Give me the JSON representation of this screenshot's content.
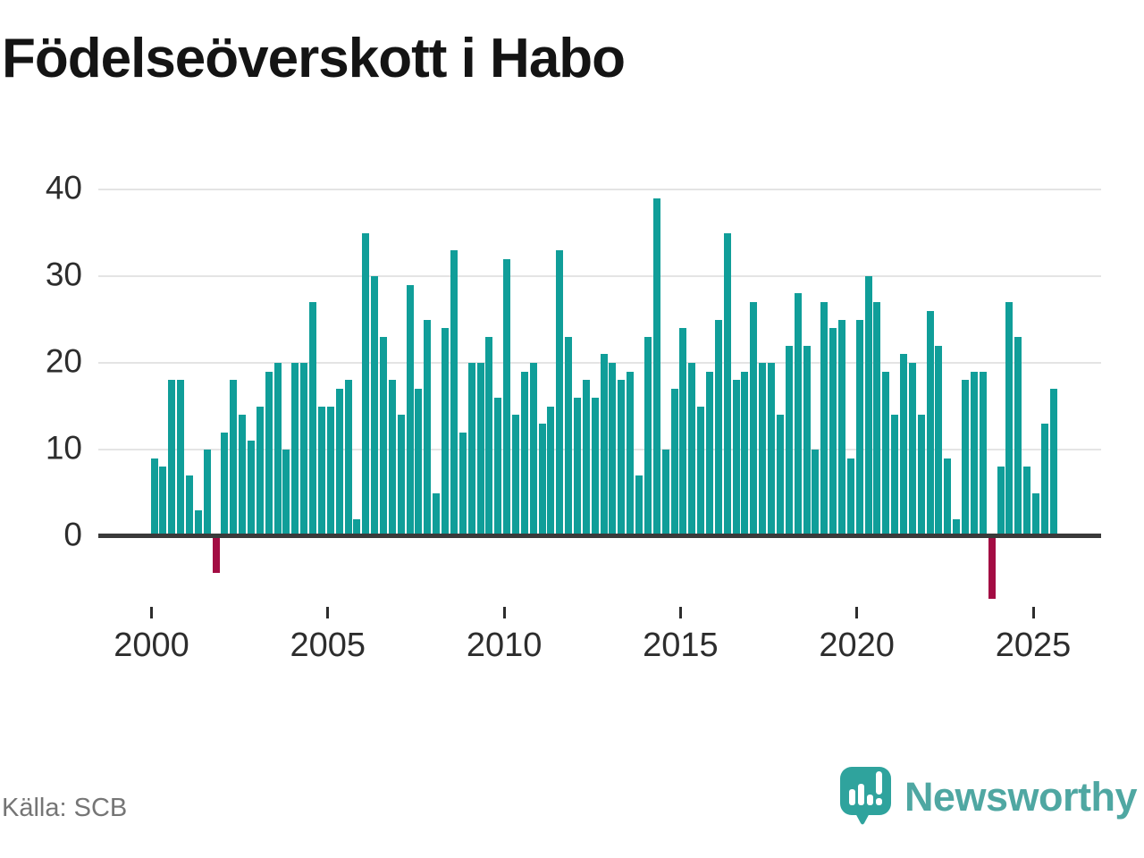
{
  "title": "Födelseöverskott i Habo",
  "source": "Källa: SCB",
  "branding": {
    "name": "Newsworthy",
    "icon": "speech-bubble-bar-chart-exclamation-icon",
    "text_color": "#4fa7a2",
    "icon_color": "#2fa39d"
  },
  "colors": {
    "bar_positive": "#109e99",
    "bar_negative": "#a30c43",
    "axis": "#3a3a3a",
    "gridline": "#e4e4e4",
    "labels": "#2d2d2d",
    "title": "#141414",
    "source_text": "#757575"
  },
  "chart_data": {
    "type": "bar",
    "title": "Födelseöverskott i Habo",
    "x_unit": "quarter",
    "start_year": 2000,
    "start_quarter": 1,
    "end_label": "2025 Q3",
    "grid": "horizontal",
    "legend": "none",
    "y_ticks": [
      0,
      10,
      20,
      30,
      40
    ],
    "ylim": [
      -8,
      42
    ],
    "x_tick_labels": [
      "2000",
      "2005",
      "2010",
      "2015",
      "2020",
      "2025"
    ],
    "series": [
      {
        "name": "Födelseöverskott",
        "values": [
          9,
          8,
          18,
          18,
          7,
          3,
          10,
          -4,
          12,
          18,
          14,
          11,
          15,
          19,
          20,
          10,
          20,
          20,
          27,
          15,
          15,
          17,
          18,
          2,
          35,
          30,
          23,
          18,
          14,
          29,
          17,
          25,
          5,
          24,
          33,
          12,
          20,
          20,
          23,
          16,
          32,
          14,
          19,
          20,
          13,
          15,
          33,
          23,
          16,
          18,
          16,
          21,
          20,
          18,
          19,
          7,
          23,
          39,
          10,
          17,
          24,
          20,
          15,
          19,
          25,
          35,
          18,
          19,
          27,
          20,
          20,
          14,
          22,
          28,
          22,
          10,
          27,
          24,
          25,
          9,
          25,
          30,
          27,
          19,
          14,
          21,
          20,
          14,
          26,
          22,
          9,
          2,
          18,
          19,
          19,
          -7,
          8,
          27,
          23,
          8,
          5,
          13,
          17
        ]
      }
    ],
    "negative_periods": [
      "2001 Q4",
      "2023 Q4"
    ]
  }
}
